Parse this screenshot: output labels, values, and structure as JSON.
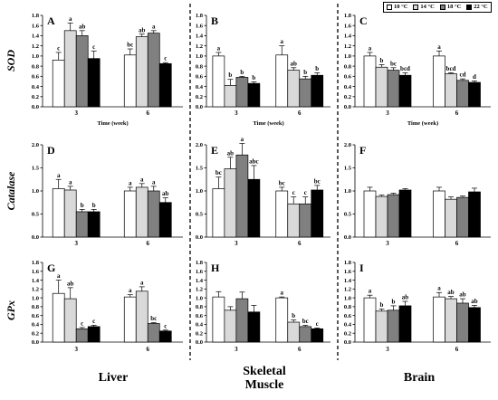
{
  "figure": {
    "row_labels": [
      "SOD",
      "Catalase",
      "GPx"
    ],
    "col_labels": [
      "Liver",
      "Skeletal Muscle",
      "Brain"
    ]
  },
  "chart_data": [
    {
      "panel": "A",
      "type": "bar",
      "categories": [
        "3",
        "6"
      ],
      "xlabel": "Time (week)",
      "ylim": [
        0,
        1.8
      ],
      "yticks": [
        "0.0",
        "0.2",
        "0.4",
        "0.6",
        "0.8",
        "1.0",
        "1.2",
        "1.4",
        "1.6",
        "1.8"
      ],
      "series": [
        {
          "name": "10 °C",
          "color": "#ffffff",
          "values": [
            0.92,
            1.02
          ],
          "errors": [
            0.15,
            0.12
          ],
          "letters": [
            "c",
            "bc"
          ]
        },
        {
          "name": "14 °C",
          "color": "#d9d9d9",
          "values": [
            1.5,
            1.38
          ],
          "errors": [
            0.15,
            0.05
          ],
          "letters": [
            "a",
            "ab"
          ]
        },
        {
          "name": "18 °C",
          "color": "#808080",
          "values": [
            1.4,
            1.45
          ],
          "errors": [
            0.1,
            0.05
          ],
          "letters": [
            "ab",
            "a"
          ]
        },
        {
          "name": "22 °C",
          "color": "#000000",
          "values": [
            0.95,
            0.85
          ],
          "errors": [
            0.15,
            0.02
          ],
          "letters": [
            "c",
            "c"
          ]
        }
      ]
    },
    {
      "panel": "B",
      "type": "bar",
      "categories": [
        "3",
        "6"
      ],
      "xlabel": "Time (week)",
      "ylim": [
        0,
        1.8
      ],
      "yticks": [
        "0.0",
        "0.2",
        "0.4",
        "0.6",
        "0.8",
        "1.0",
        "1.2",
        "1.4",
        "1.6",
        "1.8"
      ],
      "series": [
        {
          "name": "10 °C",
          "color": "#ffffff",
          "values": [
            1.0,
            1.02
          ],
          "errors": [
            0.07,
            0.18
          ],
          "letters": [
            "a",
            "a"
          ]
        },
        {
          "name": "14 °C",
          "color": "#d9d9d9",
          "values": [
            0.42,
            0.72
          ],
          "errors": [
            0.12,
            0.05
          ],
          "letters": [
            "b",
            "ab"
          ]
        },
        {
          "name": "18 °C",
          "color": "#808080",
          "values": [
            0.58,
            0.55
          ],
          "errors": [
            0.02,
            0.05
          ],
          "letters": [
            "b",
            "b"
          ]
        },
        {
          "name": "22 °C",
          "color": "#000000",
          "values": [
            0.46,
            0.62
          ],
          "errors": [
            0.03,
            0.05
          ],
          "letters": [
            "b",
            "b"
          ]
        }
      ]
    },
    {
      "panel": "C",
      "type": "bar",
      "categories": [
        "3",
        "6"
      ],
      "xlabel": "Time (week)",
      "ylim": [
        0,
        1.8
      ],
      "yticks": [
        "0.0",
        "0.2",
        "0.4",
        "0.6",
        "0.8",
        "1.0",
        "1.2",
        "1.4",
        "1.6",
        "1.8"
      ],
      "series": [
        {
          "name": "10 °C",
          "color": "#ffffff",
          "values": [
            1.0,
            1.0
          ],
          "errors": [
            0.07,
            0.1
          ],
          "letters": [
            "a",
            "a"
          ]
        },
        {
          "name": "14 °C",
          "color": "#d9d9d9",
          "values": [
            0.78,
            0.65
          ],
          "errors": [
            0.05,
            0.02
          ],
          "letters": [
            "b",
            "bcd"
          ]
        },
        {
          "name": "18 °C",
          "color": "#808080",
          "values": [
            0.72,
            0.52
          ],
          "errors": [
            0.05,
            0.03
          ],
          "letters": [
            "bc",
            "cd"
          ]
        },
        {
          "name": "22 °C",
          "color": "#000000",
          "values": [
            0.62,
            0.48
          ],
          "errors": [
            0.05,
            0.03
          ],
          "letters": [
            "bcd",
            "d"
          ]
        }
      ]
    },
    {
      "panel": "D",
      "type": "bar",
      "categories": [
        "3",
        "6"
      ],
      "ylim": [
        0,
        2.0
      ],
      "yticks": [
        "0.0",
        "0.5",
        "1.0",
        "1.5",
        "2.0"
      ],
      "series": [
        {
          "name": "10 °C",
          "color": "#ffffff",
          "values": [
            1.05,
            1.0
          ],
          "errors": [
            0.2,
            0.08
          ],
          "letters": [
            "a",
            "a"
          ]
        },
        {
          "name": "14 °C",
          "color": "#d9d9d9",
          "values": [
            1.02,
            1.08
          ],
          "errors": [
            0.08,
            0.08
          ],
          "letters": [
            "a",
            "a"
          ]
        },
        {
          "name": "18 °C",
          "color": "#808080",
          "values": [
            0.55,
            1.0
          ],
          "errors": [
            0.05,
            0.1
          ],
          "letters": [
            "b",
            "a"
          ]
        },
        {
          "name": "22 °C",
          "color": "#000000",
          "values": [
            0.55,
            0.75
          ],
          "errors": [
            0.05,
            0.1
          ],
          "letters": [
            "b",
            "ab"
          ]
        }
      ]
    },
    {
      "panel": "E",
      "type": "bar",
      "categories": [
        "3",
        "6"
      ],
      "ylim": [
        0,
        2.0
      ],
      "yticks": [
        "0.0",
        "0.5",
        "1.0",
        "1.5",
        "2.0"
      ],
      "series": [
        {
          "name": "10 °C",
          "color": "#ffffff",
          "values": [
            1.05,
            1.0
          ],
          "errors": [
            0.25,
            0.08
          ],
          "letters": [
            "bc",
            "bc"
          ]
        },
        {
          "name": "14 °C",
          "color": "#d9d9d9",
          "values": [
            1.48,
            0.72
          ],
          "errors": [
            0.25,
            0.15
          ],
          "letters": [
            "ab",
            "c"
          ]
        },
        {
          "name": "18 °C",
          "color": "#808080",
          "values": [
            1.78,
            0.72
          ],
          "errors": [
            0.25,
            0.15
          ],
          "letters": [
            "a",
            "c"
          ]
        },
        {
          "name": "22 °C",
          "color": "#000000",
          "values": [
            1.25,
            1.02
          ],
          "errors": [
            0.3,
            0.1
          ],
          "letters": [
            "abc",
            "bc"
          ]
        }
      ]
    },
    {
      "panel": "F",
      "type": "bar",
      "categories": [
        "3",
        "6"
      ],
      "ylim": [
        0,
        2.0
      ],
      "yticks": [
        "0.0",
        "0.5",
        "1.0",
        "1.5",
        "2.0"
      ],
      "series": [
        {
          "name": "10 °C",
          "color": "#ffffff",
          "values": [
            1.0,
            1.0
          ],
          "errors": [
            0.08,
            0.08
          ]
        },
        {
          "name": "14 °C",
          "color": "#d9d9d9",
          "values": [
            0.88,
            0.82
          ],
          "errors": [
            0.03,
            0.05
          ]
        },
        {
          "name": "18 °C",
          "color": "#808080",
          "values": [
            0.92,
            0.86
          ],
          "errors": [
            0.03,
            0.03
          ]
        },
        {
          "name": "22 °C",
          "color": "#000000",
          "values": [
            1.02,
            0.98
          ],
          "errors": [
            0.03,
            0.08
          ]
        }
      ]
    },
    {
      "panel": "G",
      "type": "bar",
      "categories": [
        "3",
        "6"
      ],
      "ylim": [
        0,
        1.8
      ],
      "yticks": [
        "0.0",
        "0.2",
        "0.4",
        "0.6",
        "0.8",
        "1.0",
        "1.2",
        "1.4",
        "1.6",
        "1.8"
      ],
      "series": [
        {
          "name": "10 °C",
          "color": "#ffffff",
          "values": [
            1.1,
            1.02
          ],
          "errors": [
            0.3,
            0.05
          ],
          "letters": [
            "a",
            "a"
          ]
        },
        {
          "name": "14 °C",
          "color": "#d9d9d9",
          "values": [
            0.98,
            1.15
          ],
          "errors": [
            0.25,
            0.1
          ],
          "letters": [
            "ab",
            "a"
          ]
        },
        {
          "name": "18 °C",
          "color": "#808080",
          "values": [
            0.3,
            0.42
          ],
          "errors": [
            0.03,
            0.02
          ],
          "letters": [
            "c",
            "bc"
          ]
        },
        {
          "name": "22 °C",
          "color": "#000000",
          "values": [
            0.35,
            0.25
          ],
          "errors": [
            0.03,
            0.02
          ],
          "letters": [
            "c",
            "c"
          ]
        }
      ]
    },
    {
      "panel": "H",
      "type": "bar",
      "categories": [
        "3",
        "6"
      ],
      "ylim": [
        0,
        1.8
      ],
      "yticks": [
        "0.0",
        "0.2",
        "0.4",
        "0.6",
        "0.8",
        "1.0",
        "1.2",
        "1.4",
        "1.6",
        "1.8"
      ],
      "series": [
        {
          "name": "10 °C",
          "color": "#ffffff",
          "values": [
            1.02,
            1.0
          ],
          "errors": [
            0.12,
            0.02
          ],
          "letters": [
            null,
            "a"
          ]
        },
        {
          "name": "14 °C",
          "color": "#d9d9d9",
          "values": [
            0.72,
            0.45
          ],
          "errors": [
            0.08,
            0.05
          ],
          "letters": [
            null,
            "b"
          ]
        },
        {
          "name": "18 °C",
          "color": "#808080",
          "values": [
            0.98,
            0.35
          ],
          "errors": [
            0.15,
            0.03
          ],
          "letters": [
            null,
            "bc"
          ]
        },
        {
          "name": "22 °C",
          "color": "#000000",
          "values": [
            0.68,
            0.3
          ],
          "errors": [
            0.15,
            0.02
          ],
          "letters": [
            null,
            "c"
          ]
        }
      ]
    },
    {
      "panel": "I",
      "type": "bar",
      "categories": [
        "3",
        "6"
      ],
      "ylim": [
        0,
        1.8
      ],
      "yticks": [
        "0.0",
        "0.2",
        "0.4",
        "0.6",
        "0.8",
        "1.0",
        "1.2",
        "1.4",
        "1.6",
        "1.8"
      ],
      "series": [
        {
          "name": "10 °C",
          "color": "#ffffff",
          "values": [
            1.0,
            1.02
          ],
          "errors": [
            0.06,
            0.1
          ],
          "letters": [
            "a",
            "a"
          ]
        },
        {
          "name": "14 °C",
          "color": "#d9d9d9",
          "values": [
            0.7,
            0.98
          ],
          "errors": [
            0.05,
            0.05
          ],
          "letters": [
            "b",
            "ab"
          ]
        },
        {
          "name": "18 °C",
          "color": "#808080",
          "values": [
            0.72,
            0.88
          ],
          "errors": [
            0.1,
            0.1
          ],
          "letters": [
            "b",
            "ab"
          ]
        },
        {
          "name": "22 °C",
          "color": "#000000",
          "values": [
            0.82,
            0.78
          ],
          "errors": [
            0.1,
            0.05
          ],
          "letters": [
            "ab",
            "ab"
          ]
        }
      ]
    }
  ]
}
